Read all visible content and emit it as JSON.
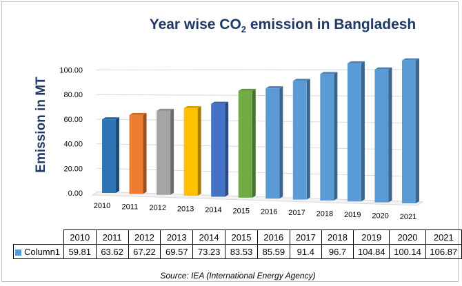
{
  "title_main": "Year wise CO",
  "title_sub": "2",
  "title_rest": " emission in Bangladesh",
  "source": "Source: IEA (International Energy Agency)",
  "table": {
    "series_label": "Column1",
    "years": [
      "2010",
      "2011",
      "2012",
      "2013",
      "2014",
      "2015",
      "2016",
      "2017",
      "2018",
      "2019",
      "2020",
      "2021"
    ],
    "values": [
      "59.81",
      "63.62",
      "67.22",
      "69.57",
      "73.23",
      "83.53",
      "85.59",
      "91.4",
      "96.7",
      "104.84",
      "100.14",
      "106.87"
    ]
  },
  "chart_data": {
    "type": "bar",
    "title": "Year wise CO2 emission in Bangladesh",
    "ylabel": "Emission in MT",
    "xlabel": "",
    "categories": [
      "2010",
      "2011",
      "2012",
      "2013",
      "2014",
      "2015",
      "2016",
      "2017",
      "2018",
      "2019",
      "2020",
      "2021"
    ],
    "series": [
      {
        "name": "Column1",
        "values": [
          59.81,
          63.62,
          67.22,
          69.57,
          73.23,
          83.53,
          85.59,
          91.4,
          96.7,
          104.84,
          100.14,
          106.87
        ],
        "colors": [
          "#2e75b6",
          "#ed7d31",
          "#a5a5a5",
          "#ffc000",
          "#4472c4",
          "#70ad47",
          "#5b9bd5",
          "#5b9bd5",
          "#5b9bd5",
          "#5b9bd5",
          "#5b9bd5",
          "#5b9bd5"
        ]
      }
    ],
    "ylim": [
      0,
      100
    ],
    "yticks": [
      "0.00",
      "20.00",
      "40.00",
      "60.00",
      "80.00",
      "100.00"
    ],
    "grid": true,
    "legend": "data table"
  }
}
